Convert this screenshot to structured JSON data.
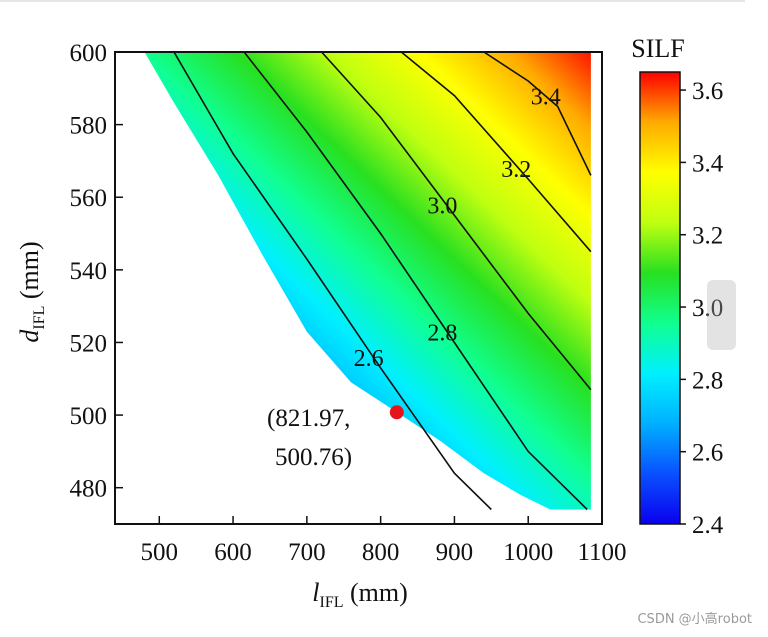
{
  "chart_data": {
    "type": "contour",
    "title": "",
    "xlabel_main": "l",
    "xlabel_sub": "IFL",
    "xlabel_unit": " (mm)",
    "ylabel_main": "d",
    "ylabel_sub": "IFL",
    "ylabel_unit": " (mm)",
    "xlim": [
      440,
      1100
    ],
    "ylim": [
      470,
      600
    ],
    "xticks": [
      "500",
      "600",
      "700",
      "800",
      "900",
      "1000",
      "1100"
    ],
    "yticks": [
      "480",
      "500",
      "520",
      "540",
      "560",
      "580",
      "600"
    ],
    "contour_levels": [
      "2.6",
      "2.8",
      "3.0",
      "3.2",
      "3.4"
    ],
    "feasible_boundary": [
      [
        480,
        600
      ],
      [
        520,
        586
      ],
      [
        580,
        566
      ],
      [
        640,
        544
      ],
      [
        700,
        523
      ],
      [
        760,
        509
      ],
      [
        822,
        500.8
      ],
      [
        880,
        493
      ],
      [
        940,
        484
      ],
      [
        990,
        478
      ],
      [
        1030,
        474
      ],
      [
        1085,
        474
      ],
      [
        1085,
        600
      ]
    ],
    "contour_lines": [
      {
        "level": 2.6,
        "points": [
          [
            520,
            600
          ],
          [
            600,
            572
          ],
          [
            700,
            543
          ],
          [
            800,
            513
          ],
          [
            900,
            484
          ],
          [
            950,
            474
          ]
        ]
      },
      {
        "level": 2.8,
        "points": [
          [
            615,
            600
          ],
          [
            700,
            578
          ],
          [
            800,
            550
          ],
          [
            900,
            520
          ],
          [
            1000,
            490
          ],
          [
            1080,
            474
          ]
        ]
      },
      {
        "level": 3.0,
        "points": [
          [
            720,
            600
          ],
          [
            800,
            582
          ],
          [
            900,
            555
          ],
          [
            1000,
            528
          ],
          [
            1085,
            507
          ]
        ]
      },
      {
        "level": 3.2,
        "points": [
          [
            828,
            600
          ],
          [
            900,
            588
          ],
          [
            1000,
            565
          ],
          [
            1085,
            545
          ]
        ]
      },
      {
        "level": 3.4,
        "points": [
          [
            940,
            600
          ],
          [
            1000,
            592
          ],
          [
            1040,
            585
          ],
          [
            1085,
            566
          ]
        ]
      }
    ],
    "optimum": {
      "x": 821.97,
      "y": 500.76,
      "label_line1": "(821.97,",
      "label_line2": "500.76)",
      "color": "#e8141c"
    },
    "colorbar": {
      "title": "SILF",
      "min": 2.4,
      "max": 3.65,
      "ticks": [
        "3.6",
        "3.4",
        "3.2",
        "3.0",
        "2.8",
        "2.6",
        "2.4"
      ]
    },
    "colormap": [
      "#0a00ee",
      "#0a50ff",
      "#00b0ff",
      "#00f0ff",
      "#10ff90",
      "#28e020",
      "#c0ff10",
      "#ffff00",
      "#ffaa00",
      "#ff0000"
    ]
  },
  "watermark": "CSDN @小高robot"
}
